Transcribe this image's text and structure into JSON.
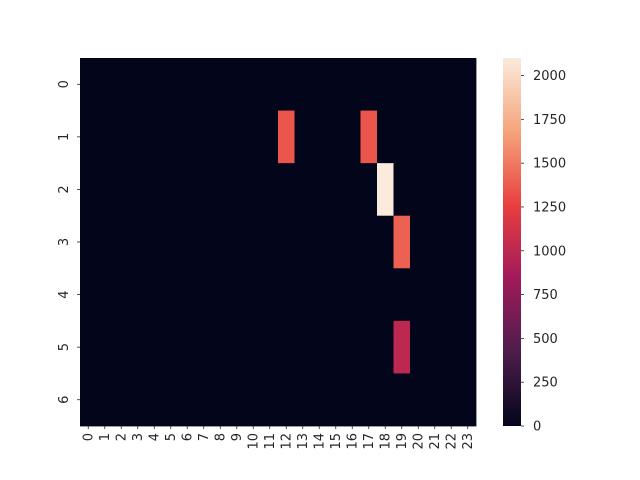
{
  "chart_data": {
    "type": "heatmap",
    "title": "",
    "xlabel": "",
    "ylabel": "",
    "x_categories": [
      "0",
      "1",
      "2",
      "3",
      "4",
      "5",
      "6",
      "7",
      "8",
      "9",
      "10",
      "11",
      "12",
      "13",
      "14",
      "15",
      "16",
      "17",
      "18",
      "19",
      "20",
      "21",
      "22",
      "23"
    ],
    "y_categories": [
      "0",
      "1",
      "2",
      "3",
      "4",
      "5",
      "6"
    ],
    "values": [
      [
        0,
        0,
        0,
        0,
        0,
        0,
        0,
        0,
        0,
        0,
        0,
        0,
        0,
        0,
        0,
        0,
        0,
        0,
        0,
        0,
        0,
        0,
        0,
        0
      ],
      [
        0,
        0,
        0,
        0,
        0,
        0,
        0,
        0,
        0,
        0,
        0,
        0,
        1350,
        0,
        0,
        0,
        0,
        1350,
        0,
        0,
        0,
        0,
        0,
        0
      ],
      [
        0,
        0,
        0,
        0,
        0,
        0,
        0,
        0,
        0,
        0,
        0,
        0,
        0,
        0,
        0,
        0,
        0,
        0,
        2100,
        0,
        0,
        0,
        0,
        0
      ],
      [
        0,
        0,
        0,
        0,
        0,
        0,
        0,
        0,
        0,
        0,
        0,
        0,
        0,
        0,
        0,
        0,
        0,
        0,
        0,
        1400,
        0,
        0,
        0,
        0
      ],
      [
        0,
        0,
        0,
        0,
        0,
        0,
        0,
        0,
        0,
        0,
        0,
        0,
        0,
        0,
        0,
        0,
        0,
        0,
        0,
        0,
        0,
        0,
        0,
        0
      ],
      [
        0,
        0,
        0,
        0,
        0,
        0,
        0,
        0,
        0,
        0,
        0,
        0,
        0,
        0,
        0,
        0,
        0,
        0,
        0,
        1000,
        0,
        0,
        0,
        0
      ],
      [
        0,
        0,
        0,
        0,
        0,
        0,
        0,
        0,
        0,
        0,
        0,
        0,
        0,
        0,
        0,
        0,
        0,
        0,
        0,
        0,
        0,
        0,
        0,
        0
      ]
    ],
    "colorbar": {
      "min": 0,
      "max": 2100,
      "ticks": [
        0,
        250,
        500,
        750,
        1000,
        1250,
        1500,
        1750,
        2000
      ],
      "tick_labels": [
        "0",
        "250",
        "500",
        "750",
        "1000",
        "1250",
        "1500",
        "1750",
        "2000"
      ]
    },
    "colormap": "rocket",
    "colormap_stops": [
      "#03051a",
      "#4c1d4b",
      "#a11a5b",
      "#e83f3f",
      "#f6a47c",
      "#faebdd"
    ]
  }
}
